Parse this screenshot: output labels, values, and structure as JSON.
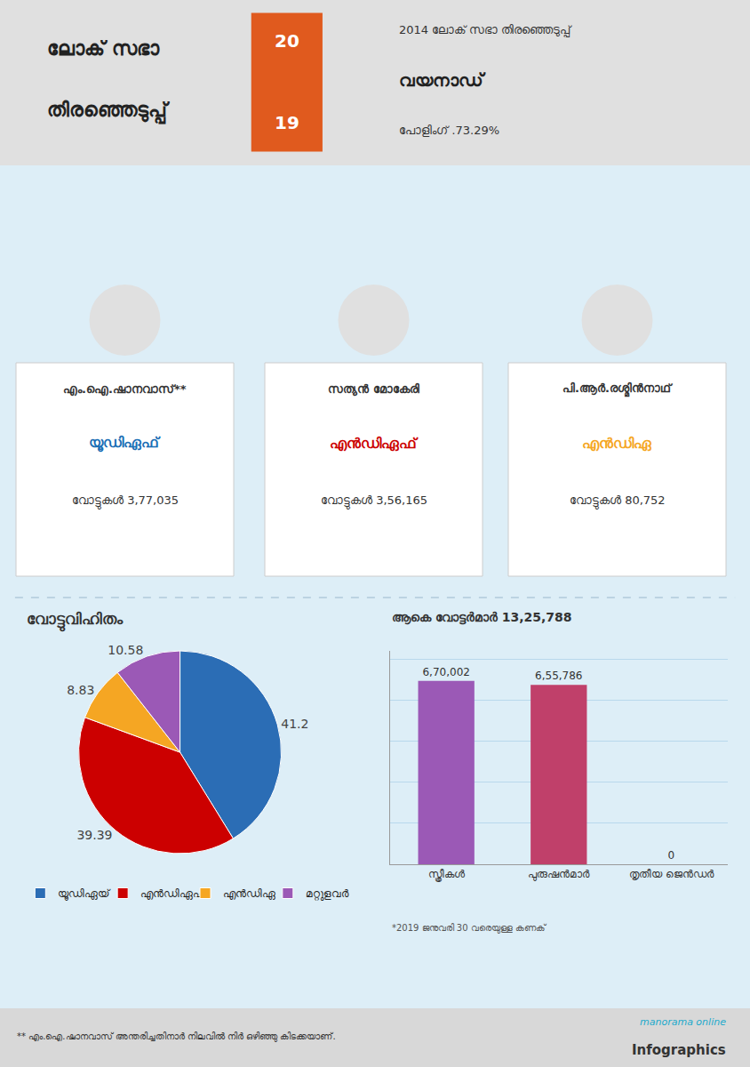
{
  "chart_data": [
    {
      "type": "pie",
      "title": "വോട്ടുവിഹിതം",
      "categories": [
        "യൂഡിഏയ്‌",
        "എൻഡിഏഫ്‌",
        "എൻഡിഏ",
        "മറ്റുളവർ"
      ],
      "values": [
        41.2,
        39.39,
        8.83,
        10.58
      ],
      "colors": [
        "#2b6db5",
        "#cc0000",
        "#f5a623",
        "#9b59b6"
      ],
      "data_labels": true,
      "legend": "bottom",
      "annotations": [
        {
          "text": "ലോക് സഭാ"
        },
        {
          "text": "തിരഞ്ഞെടുപ്പ്"
        },
        {
          "text": "20"
        },
        {
          "text": "19"
        },
        {
          "text": "2014 ലോക് സഭാ തിരഞ്ഞെടുപ്പ്"
        },
        {
          "text": "വയനാഡ്"
        },
        {
          "text": "പോളിംഗ് ․73.29%"
        },
        {
          "text": "എം.ഐ.ഷാനവാസ്‌**"
        },
        {
          "text": "യൂഡിഏഫ്‌",
          "color": "#1a6eb5"
        },
        {
          "text": "വോട്ടുകള്‍ 3,77,035"
        },
        {
          "text": "സത്യൻ മോകേരി"
        },
        {
          "text": "എൻഡിഏഫ്‌",
          "color": "#cc0000"
        },
        {
          "text": "വോട്ടുകള്‍ 3,56,165"
        },
        {
          "text": "പി.ആർ.രശ്മിൻനാഥ്‌"
        },
        {
          "text": "എൻഡിഏ",
          "color": "#f5a623"
        },
        {
          "text": "വോട്ടുകള്‍ 80,752"
        },
        {
          "text": "** എം.ഐ.ഷാനവാസ് അന്തരിച്ചതിനാർ നിലവിൽ നിർ ഒഴിഞ്ഞു കിടക്കയാണ്‌."
        },
        {
          "text": "manorama online"
        },
        {
          "text": "Infographics"
        }
      ]
    },
    {
      "type": "bar",
      "title": "ആകെ വോട്ടർമാർ 13,25,788",
      "categories": [
        "സ്ത്രീകള്‍",
        "പുരുഷൻമാർ",
        "തൃതീയ ജെൻഡർ"
      ],
      "values": [
        670002,
        655786,
        0
      ],
      "value_labels": [
        "6,70,002",
        "6,55,786",
        "0"
      ],
      "colors": [
        "#9b59b6",
        "#c0406a",
        "#aaaaaa"
      ],
      "data_labels": true,
      "ylim": [
        0,
        780000
      ],
      "yticks": [
        0,
        150000,
        300000,
        450000,
        600000,
        750000
      ],
      "grid": true,
      "tick_labels": "x",
      "annotations": [
        {
          "text": "*2019 ജനുവരി 30 വരെയുള്ള കണക്‌"
        }
      ]
    }
  ]
}
